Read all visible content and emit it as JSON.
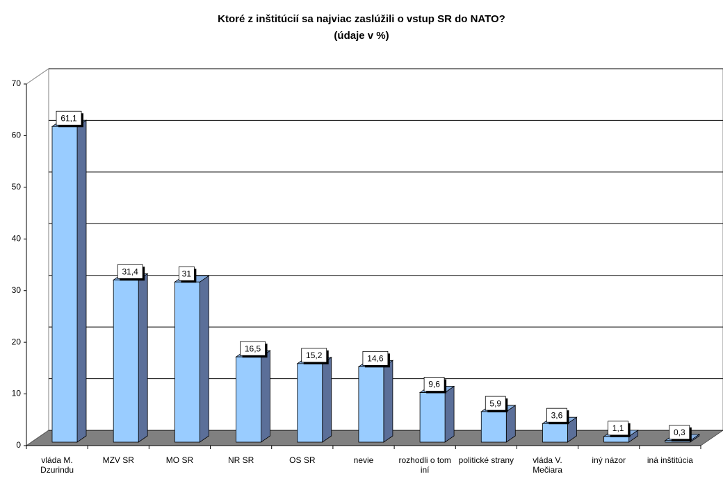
{
  "chart_data": {
    "type": "bar3d",
    "title": "Ktoré z inštitúcií sa najviac zaslúžili o vstup SR do NATO?",
    "subtitle": "(údaje v %)",
    "categories": [
      "vláda M. Dzurindu",
      "MZV SR",
      "MO SR",
      "NR SR",
      "OS SR",
      "nevie",
      "rozhodli o tom iní",
      "politické strany",
      "vláda V. Mečiara",
      "iný názor",
      "iná inštitúcia"
    ],
    "values": [
      61.1,
      31.4,
      31,
      16.5,
      15.2,
      14.6,
      9.6,
      5.9,
      3.6,
      1.1,
      0.3
    ],
    "value_labels": [
      "61,1",
      "31,4",
      "31",
      "16,5",
      "15,2",
      "14,6",
      "9,6",
      "5,9",
      "3,6",
      "1,1",
      "0,3"
    ],
    "color": "#99ccff",
    "ylim": [
      0,
      70
    ],
    "yticks": [
      0,
      10,
      20,
      30,
      40,
      50,
      60,
      70
    ],
    "grid": true
  }
}
